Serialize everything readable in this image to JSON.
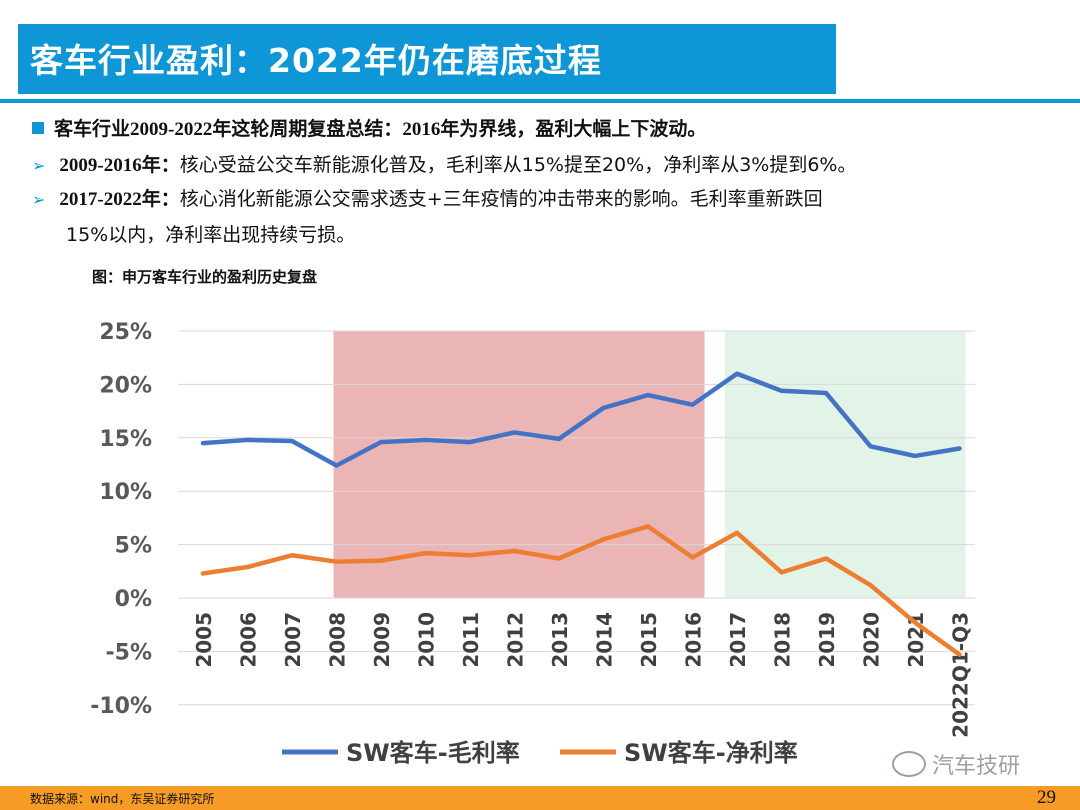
{
  "header": {
    "title": "客车行业盈利：2022年仍在磨底过程"
  },
  "bullets": {
    "b1": "客车行业2009-2022年这轮周期复盘总结：2016年为界线，盈利大幅上下波动。",
    "b2_head": "2009-2016年：",
    "b2_text": "核心受益公交车新能源化普及，毛利率从15%提至20%，净利率从3%提到6%。",
    "b3_head": "2017-2022年：",
    "b3_text": "核心消化新能源公交需求透支+三年疫情的冲击带来的影响。毛利率重新跌回",
    "b4_text": "15%以内，净利率出现持续亏损。"
  },
  "figure_caption": "图：申万客车行业的盈利历史复盘",
  "source": "数据来源：wind，东吴证券研究所",
  "page_number": "29",
  "watermark": "汽车技研",
  "colors": {
    "accent": "#0e96d6",
    "footer": "#f59b26",
    "gross": "#4472c4",
    "net": "#ed7d31",
    "shade_red": "#e8a8a8",
    "shade_green": "#dff2e4"
  },
  "chart_data": {
    "type": "line",
    "categories": [
      "2005",
      "2006",
      "2007",
      "2008",
      "2009",
      "2010",
      "2011",
      "2012",
      "2013",
      "2014",
      "2015",
      "2016",
      "2017",
      "2018",
      "2019",
      "2020",
      "2021",
      "2022Q1-Q3"
    ],
    "series": [
      {
        "name": "SW客车-毛利率",
        "values": [
          14.5,
          14.8,
          14.7,
          12.4,
          14.6,
          14.8,
          14.6,
          15.5,
          14.9,
          17.8,
          19.0,
          18.1,
          21.0,
          19.4,
          19.2,
          14.2,
          13.3,
          14.0
        ]
      },
      {
        "name": "SW客车-净利率",
        "values": [
          2.3,
          2.9,
          4.0,
          3.4,
          3.5,
          4.2,
          4.0,
          4.4,
          3.7,
          5.5,
          6.7,
          3.8,
          6.1,
          2.4,
          3.7,
          1.2,
          -2.3,
          -5.3
        ]
      }
    ],
    "ylim": [
      -10,
      25
    ],
    "yticks": [
      "25%",
      "20%",
      "15%",
      "10%",
      "5%",
      "0%",
      "-5%",
      "-10%"
    ],
    "shaded_regions": [
      {
        "from": "2008",
        "to": "2016",
        "color": "red"
      },
      {
        "from": "2017",
        "to": "2022Q1-Q3",
        "color": "green"
      }
    ],
    "grid": true,
    "legend": "bottom"
  }
}
